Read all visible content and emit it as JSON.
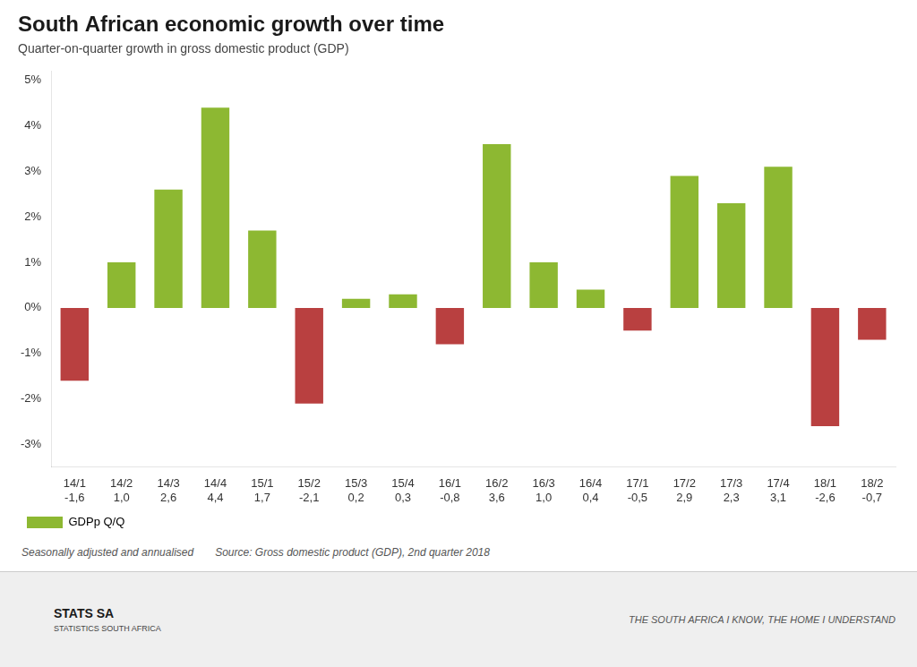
{
  "chart_data": {
    "type": "bar",
    "title": "South African economic growth over time",
    "subtitle": "Quarter-on-quarter growth in gross domestic product (GDP)",
    "categories": [
      "14/1",
      "14/2",
      "14/3",
      "14/4",
      "15/1",
      "15/2",
      "15/3",
      "15/4",
      "16/1",
      "16/2",
      "16/3",
      "16/4",
      "17/1",
      "17/2",
      "17/3",
      "17/4",
      "18/1",
      "18/2"
    ],
    "series": [
      {
        "name": "GDPp Q/Q",
        "color": "#8db832",
        "colors": [
          "#b94040",
          "#8db832",
          "#8db832",
          "#8db832",
          "#8db832",
          "#b94040",
          "#8db832",
          "#8db832",
          "#b94040",
          "#8db832",
          "#8db832",
          "#8db832",
          "#b94040",
          "#8db832",
          "#8db832",
          "#8db832",
          "#b94040",
          "#b94040"
        ],
        "values": [
          -1.6,
          1.0,
          2.6,
          4.4,
          1.7,
          -2.1,
          0.2,
          0.3,
          -0.8,
          3.6,
          1.0,
          0.4,
          -0.5,
          2.9,
          2.3,
          3.1,
          -2.6,
          -0.7
        ],
        "value_labels": [
          "-1,6",
          "1,0",
          "2,6",
          "4,4",
          "1,7",
          "-2,1",
          "0,2",
          "0,3",
          "-0,8",
          "3,6",
          "1,0",
          "0,4",
          "-0,5",
          "2,9",
          "2,3",
          "3,1",
          "-2,6",
          "-0,7"
        ]
      }
    ],
    "data_labels": true,
    "ylim": [
      -3.5,
      5.2
    ],
    "yticks": [
      {
        "value": -3,
        "label": "-3%"
      },
      {
        "value": -2,
        "label": "-2%"
      },
      {
        "value": -1,
        "label": "-1%"
      },
      {
        "value": 0,
        "label": "0%"
      },
      {
        "value": 1,
        "label": "1%"
      },
      {
        "value": 2,
        "label": "2%"
      },
      {
        "value": 3,
        "label": "3%"
      },
      {
        "value": 4,
        "label": "4%"
      },
      {
        "value": 5,
        "label": "5%"
      }
    ],
    "grid": false,
    "legend": "bottom",
    "annotations": [
      "Seasonally adjusted and annualised",
      "Source: Gross domestic product (GDP), 2nd quarter 2018",
      "STATS SA",
      "STATISTICS SOUTH AFRICA",
      "THE SOUTH AFRICA I KNOW, THE HOME I UNDERSTAND"
    ]
  }
}
